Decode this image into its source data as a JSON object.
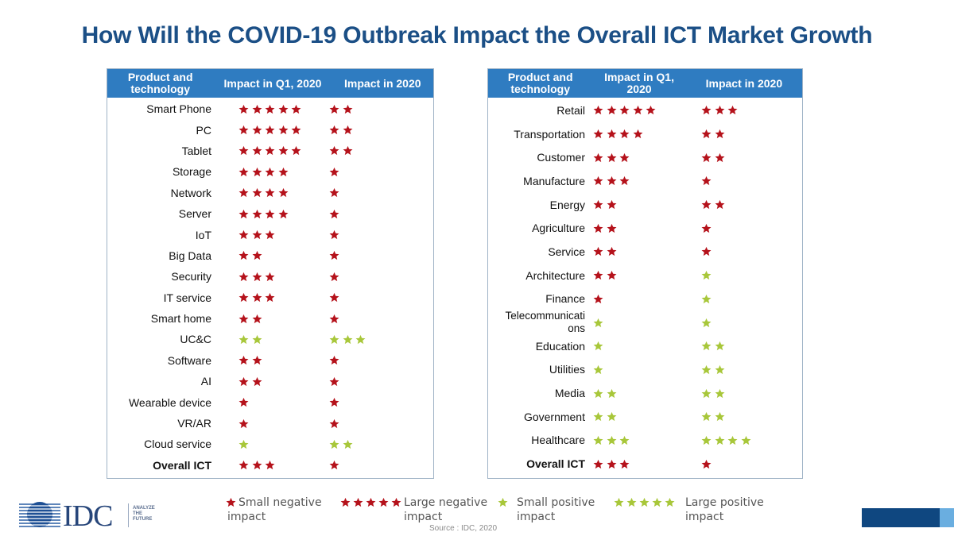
{
  "title": "How Will the COVID-19 Outbreak Impact the Overall ICT Market Growth",
  "colors": {
    "title": "#1b4f86",
    "header_bg": "#2f7cc1",
    "negative_star": "#b5121b",
    "positive_star": "#a8c73a",
    "brand_dark": "#0f4780",
    "brand_light": "#6aaee0"
  },
  "tables": [
    {
      "headers": [
        "Product and technology",
        "Impact in Q1, 2020",
        "Impact in 2020"
      ],
      "rows": [
        {
          "label": "Smart Phone",
          "q1": {
            "count": 5,
            "type": "negative"
          },
          "y2020": {
            "count": 2,
            "type": "negative"
          }
        },
        {
          "label": "PC",
          "q1": {
            "count": 5,
            "type": "negative"
          },
          "y2020": {
            "count": 2,
            "type": "negative"
          }
        },
        {
          "label": "Tablet",
          "q1": {
            "count": 5,
            "type": "negative"
          },
          "y2020": {
            "count": 2,
            "type": "negative"
          }
        },
        {
          "label": "Storage",
          "q1": {
            "count": 4,
            "type": "negative"
          },
          "y2020": {
            "count": 1,
            "type": "negative"
          }
        },
        {
          "label": "Network",
          "q1": {
            "count": 4,
            "type": "negative"
          },
          "y2020": {
            "count": 1,
            "type": "negative"
          }
        },
        {
          "label": "Server",
          "q1": {
            "count": 4,
            "type": "negative"
          },
          "y2020": {
            "count": 1,
            "type": "negative"
          }
        },
        {
          "label": "IoT",
          "q1": {
            "count": 3,
            "type": "negative"
          },
          "y2020": {
            "count": 1,
            "type": "negative"
          }
        },
        {
          "label": "Big Data",
          "q1": {
            "count": 2,
            "type": "negative"
          },
          "y2020": {
            "count": 1,
            "type": "negative"
          }
        },
        {
          "label": "Security",
          "q1": {
            "count": 3,
            "type": "negative"
          },
          "y2020": {
            "count": 1,
            "type": "negative"
          }
        },
        {
          "label": "IT service",
          "q1": {
            "count": 3,
            "type": "negative"
          },
          "y2020": {
            "count": 1,
            "type": "negative"
          }
        },
        {
          "label": "Smart home",
          "q1": {
            "count": 2,
            "type": "negative"
          },
          "y2020": {
            "count": 1,
            "type": "negative"
          }
        },
        {
          "label": "UC&C",
          "q1": {
            "count": 2,
            "type": "positive"
          },
          "y2020": {
            "count": 3,
            "type": "positive"
          }
        },
        {
          "label": "Software",
          "q1": {
            "count": 2,
            "type": "negative"
          },
          "y2020": {
            "count": 1,
            "type": "negative"
          }
        },
        {
          "label": "AI",
          "q1": {
            "count": 2,
            "type": "negative"
          },
          "y2020": {
            "count": 1,
            "type": "negative"
          }
        },
        {
          "label": "Wearable device",
          "q1": {
            "count": 1,
            "type": "negative"
          },
          "y2020": {
            "count": 1,
            "type": "negative"
          }
        },
        {
          "label": "VR/AR",
          "q1": {
            "count": 1,
            "type": "negative"
          },
          "y2020": {
            "count": 1,
            "type": "negative"
          }
        },
        {
          "label": "Cloud service",
          "q1": {
            "count": 1,
            "type": "positive"
          },
          "y2020": {
            "count": 2,
            "type": "positive"
          }
        },
        {
          "label": "Overall ICT",
          "bold": true,
          "q1": {
            "count": 3,
            "type": "negative"
          },
          "y2020": {
            "count": 1,
            "type": "negative"
          }
        }
      ]
    },
    {
      "headers": [
        "Product and technology",
        "Impact in Q1, 2020",
        "Impact in 2020"
      ],
      "rows": [
        {
          "label": "Retail",
          "q1": {
            "count": 5,
            "type": "negative"
          },
          "y2020": {
            "count": 3,
            "type": "negative"
          }
        },
        {
          "label": "Transportation",
          "q1": {
            "count": 4,
            "type": "negative"
          },
          "y2020": {
            "count": 2,
            "type": "negative"
          }
        },
        {
          "label": "Customer",
          "q1": {
            "count": 3,
            "type": "negative"
          },
          "y2020": {
            "count": 2,
            "type": "negative"
          }
        },
        {
          "label": "Manufacture",
          "q1": {
            "count": 3,
            "type": "negative"
          },
          "y2020": {
            "count": 1,
            "type": "negative"
          }
        },
        {
          "label": "Energy",
          "q1": {
            "count": 2,
            "type": "negative"
          },
          "y2020": {
            "count": 2,
            "type": "negative"
          }
        },
        {
          "label": "Agriculture",
          "q1": {
            "count": 2,
            "type": "negative"
          },
          "y2020": {
            "count": 1,
            "type": "negative"
          }
        },
        {
          "label": "Service",
          "q1": {
            "count": 2,
            "type": "negative"
          },
          "y2020": {
            "count": 1,
            "type": "negative"
          }
        },
        {
          "label": "Architecture",
          "q1": {
            "count": 2,
            "type": "negative"
          },
          "y2020": {
            "count": 1,
            "type": "positive"
          }
        },
        {
          "label": "Finance",
          "q1": {
            "count": 1,
            "type": "negative"
          },
          "y2020": {
            "count": 1,
            "type": "positive"
          }
        },
        {
          "label": "Telecommunications",
          "q1": {
            "count": 1,
            "type": "positive"
          },
          "y2020": {
            "count": 1,
            "type": "positive"
          }
        },
        {
          "label": "Education",
          "q1": {
            "count": 1,
            "type": "positive"
          },
          "y2020": {
            "count": 2,
            "type": "positive"
          }
        },
        {
          "label": "Utilities",
          "q1": {
            "count": 1,
            "type": "positive"
          },
          "y2020": {
            "count": 2,
            "type": "positive"
          }
        },
        {
          "label": "Media",
          "q1": {
            "count": 2,
            "type": "positive"
          },
          "y2020": {
            "count": 2,
            "type": "positive"
          }
        },
        {
          "label": "Government",
          "q1": {
            "count": 2,
            "type": "positive"
          },
          "y2020": {
            "count": 2,
            "type": "positive"
          }
        },
        {
          "label": "Healthcare",
          "q1": {
            "count": 3,
            "type": "positive"
          },
          "y2020": {
            "count": 4,
            "type": "positive"
          }
        },
        {
          "label": "Overall ICT",
          "bold": true,
          "q1": {
            "count": 3,
            "type": "negative"
          },
          "y2020": {
            "count": 1,
            "type": "negative"
          }
        }
      ]
    }
  ],
  "legend": [
    {
      "stars": 1,
      "type": "negative",
      "label": "Small negative impact"
    },
    {
      "stars": 5,
      "type": "negative",
      "label": "Large negative impact"
    },
    {
      "stars": 1,
      "type": "positive",
      "label": "Small positive impact"
    },
    {
      "stars": 5,
      "type": "positive",
      "label": "Large positive impact"
    }
  ],
  "source": "Source : IDC, 2020",
  "logo": {
    "name": "IDC",
    "tagline": [
      "ANALYZE",
      "THE",
      "FUTURE"
    ]
  }
}
